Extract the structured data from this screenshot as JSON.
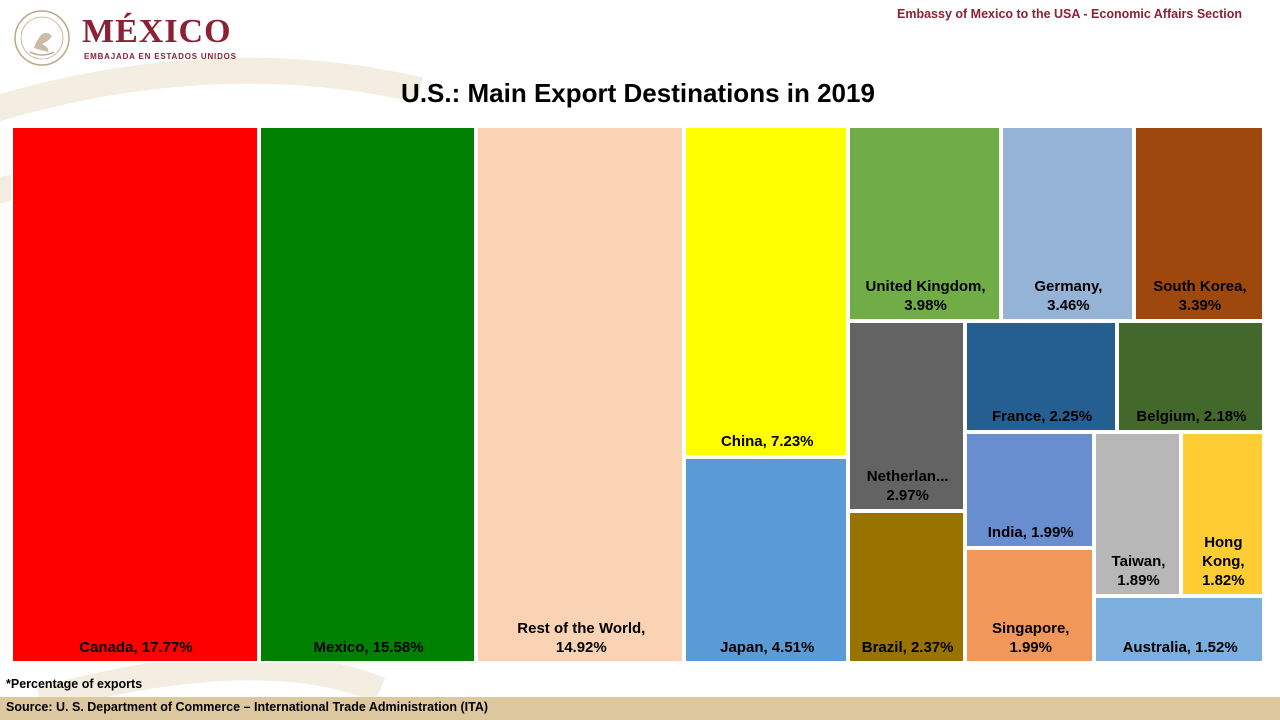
{
  "header": {
    "logo_title": "MÉXICO",
    "logo_subtitle": "EMBAJADA EN ESTADOS UNIDOS",
    "embassy": "Embassy of Mexico to the USA - Economic Affairs Section"
  },
  "footer": {
    "note": "*Percentage of exports",
    "source": "Source: U. S. Department of Commerce – International Trade Administration (ITA)"
  },
  "chart_data": {
    "type": "treemap",
    "title": "U.S.: Main Export Destinations in 2019",
    "unit": "%",
    "items": [
      {
        "label": "Canada, 17.77%",
        "value": 17.77,
        "color": "#ff0000"
      },
      {
        "label": "Mexico, 15.58%",
        "value": 15.58,
        "color": "#008000"
      },
      {
        "label": "Rest of the World,\n14.92%",
        "value": 14.92,
        "color": "#fad3b4"
      },
      {
        "label": "China, 7.23%",
        "value": 7.23,
        "color": "#ffff00"
      },
      {
        "label": "Japan, 4.51%",
        "value": 4.51,
        "color": "#5b9bd5"
      },
      {
        "label": "United Kingdom,\n3.98%",
        "value": 3.98,
        "color": "#70ad47"
      },
      {
        "label": "Germany,\n3.46%",
        "value": 3.46,
        "color": "#95b3d7"
      },
      {
        "label": "South Korea,\n3.39%",
        "value": 3.39,
        "color": "#9e480e"
      },
      {
        "label": "Netherlan...\n2.97%",
        "value": 2.97,
        "color": "#636363"
      },
      {
        "label": "Brazil, 2.37%",
        "value": 2.37,
        "color": "#997300"
      },
      {
        "label": "France, 2.25%",
        "value": 2.25,
        "color": "#255e91"
      },
      {
        "label": "Belgium, 2.18%",
        "value": 2.18,
        "color": "#43682b"
      },
      {
        "label": "India, 1.99%",
        "value": 1.99,
        "color": "#698ed0"
      },
      {
        "label": "Singapore,\n1.99%",
        "value": 1.99,
        "color": "#f1975a"
      },
      {
        "label": "Taiwan,\n1.89%",
        "value": 1.89,
        "color": "#b7b7b7"
      },
      {
        "label": "Hong\nKong,\n1.82%",
        "value": 1.82,
        "color": "#ffcd33"
      },
      {
        "label": "Australia, 1.52%",
        "value": 1.52,
        "color": "#7cafdd"
      }
    ]
  }
}
